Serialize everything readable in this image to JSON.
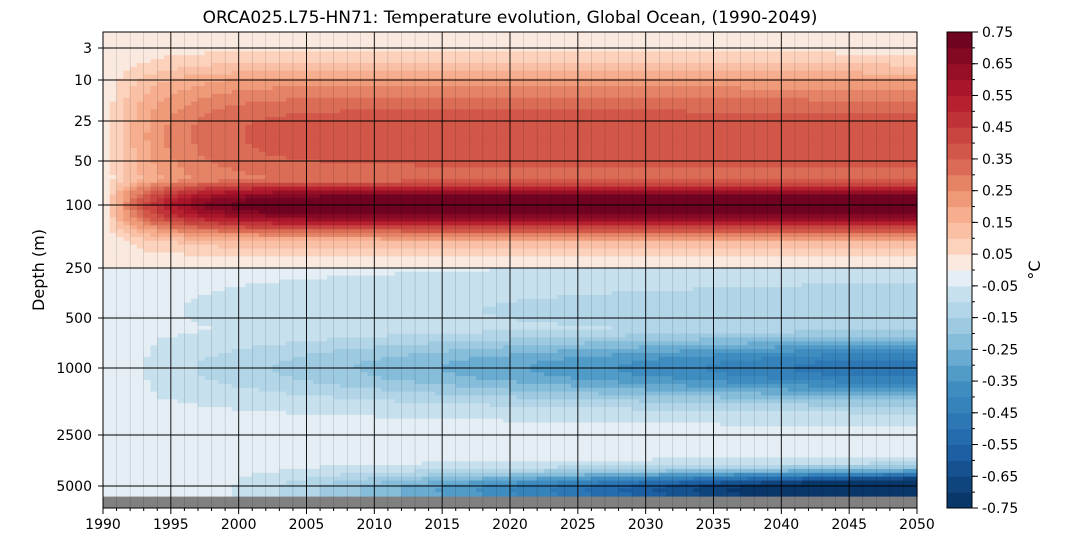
{
  "chart_data": {
    "type": "heatmap",
    "title": "ORCA025.L75-HN71: Temperature evolution, Global Ocean, (1990-2049)",
    "xlabel": "",
    "ylabel": "Depth (m)",
    "colorbar_label": "°C",
    "x_range": [
      1990,
      2050
    ],
    "x_ticks": [
      1990,
      1995,
      2000,
      2005,
      2010,
      2015,
      2020,
      2025,
      2030,
      2035,
      2040,
      2045,
      2050
    ],
    "y_ticks": [
      3,
      10,
      25,
      50,
      100,
      250,
      500,
      1000,
      2500,
      5000
    ],
    "y_scale": "stretched depth (shallow layers expanded)",
    "y_range": [
      0,
      6000
    ],
    "grid": true,
    "colormap": "RdBu_r",
    "color_range": [
      -0.75,
      0.75
    ],
    "color_step": 0.05,
    "colorbar_ticks": [
      "0.75",
      "0.65",
      "0.55",
      "0.45",
      "0.35",
      "0.25",
      "0.15",
      "0.05",
      "-0.05",
      "-0.15",
      "-0.25",
      "-0.35",
      "-0.45",
      "-0.55",
      "-0.65",
      "-0.75"
    ],
    "masked_color": "#808080",
    "field_description": {
      "surface_to_250m": "warming from 0 in 1990, reaching about +0.75 near 100 m by 2005-2015",
      "below_250m": "cooling growing over time, about -0.4 near 1000 m and about -0.75 near the bottom by 2049"
    }
  }
}
